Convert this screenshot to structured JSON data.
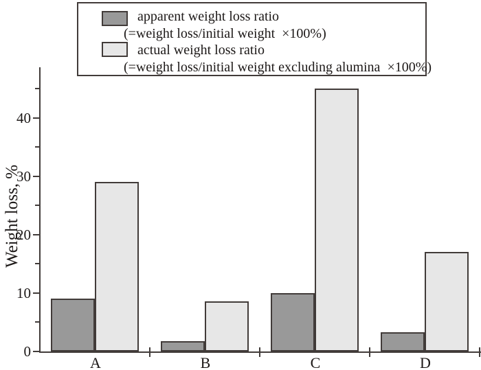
{
  "legend": {
    "apparent_label": "apparent weight loss ratio",
    "apparent_formula": "(=weight loss/initial weight  ×100%)",
    "actual_label": "actual weight loss ratio",
    "actual_formula": "(=weight loss/initial weight excluding alumina  ×100%)"
  },
  "chart_data": {
    "type": "bar",
    "categories": [
      "A",
      "B",
      "C",
      "D"
    ],
    "series": [
      {
        "name": "apparent weight loss ratio",
        "color": "#999999",
        "values": [
          9.0,
          1.8,
          10.0,
          3.3
        ]
      },
      {
        "name": "actual weight loss ratio",
        "color": "#e7e7e7",
        "values": [
          29.0,
          8.6,
          45.0,
          17.0
        ]
      }
    ],
    "title": "",
    "xlabel": "",
    "ylabel": "Weight loss, %",
    "ylim": [
      0,
      48.7
    ],
    "ytick_major": [
      0,
      10,
      20,
      30,
      40
    ],
    "ytick_minor": [
      5,
      15,
      25,
      35,
      45
    ],
    "ytick_labels": [
      "0",
      "10",
      "20",
      "30",
      "40"
    ],
    "grid": false,
    "legend_position": "top-center-boxed",
    "axis_color": "#413b39",
    "background_color": "#ffffff"
  }
}
